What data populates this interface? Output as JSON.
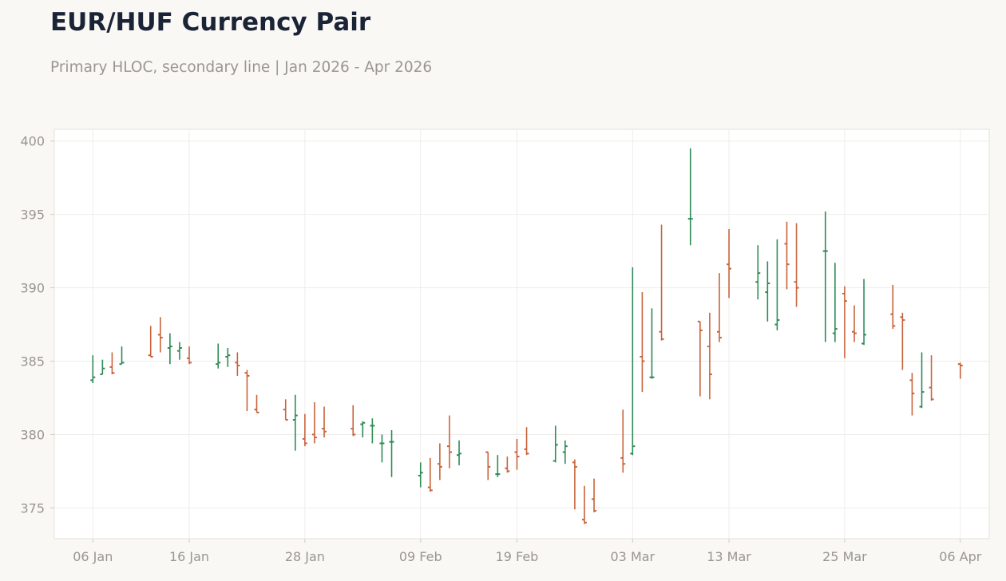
{
  "chart_data": {
    "type": "ohlc",
    "title": "EUR/HUF Currency Pair",
    "subtitle": "Primary HLOC, secondary line | Jan 2026 - Apr 2026",
    "xlabel": "",
    "ylabel": "",
    "ylim": [
      372.9,
      400.8
    ],
    "yticks": [
      375,
      380,
      385,
      390,
      395,
      400
    ],
    "xlim": [
      "2026-01-02",
      "2026-04-09"
    ],
    "xticks": [
      {
        "date": "2026-01-06",
        "label": "06 Jan"
      },
      {
        "date": "2026-01-16",
        "label": "16 Jan"
      },
      {
        "date": "2026-01-28",
        "label": "28 Jan"
      },
      {
        "date": "2026-02-09",
        "label": "09 Feb"
      },
      {
        "date": "2026-02-19",
        "label": "19 Feb"
      },
      {
        "date": "2026-03-03",
        "label": "03 Mar"
      },
      {
        "date": "2026-03-13",
        "label": "13 Mar"
      },
      {
        "date": "2026-03-25",
        "label": "25 Mar"
      },
      {
        "date": "2026-04-06",
        "label": "06 Apr"
      }
    ],
    "grid": true,
    "legend": "none",
    "colors": {
      "up": "#2e8b57",
      "down": "#c8633b"
    },
    "dates": [
      "2026-01-06",
      "2026-01-07",
      "2026-01-08",
      "2026-01-09",
      "2026-01-12",
      "2026-01-13",
      "2026-01-14",
      "2026-01-15",
      "2026-01-16",
      "2026-01-19",
      "2026-01-20",
      "2026-01-21",
      "2026-01-22",
      "2026-01-23",
      "2026-01-26",
      "2026-01-27",
      "2026-01-28",
      "2026-01-29",
      "2026-01-30",
      "2026-02-02",
      "2026-02-03",
      "2026-02-04",
      "2026-02-05",
      "2026-02-06",
      "2026-02-09",
      "2026-02-10",
      "2026-02-11",
      "2026-02-12",
      "2026-02-13",
      "2026-02-16",
      "2026-02-17",
      "2026-02-18",
      "2026-02-19",
      "2026-02-20",
      "2026-02-23",
      "2026-02-24",
      "2026-02-25",
      "2026-02-26",
      "2026-02-27",
      "2026-03-02",
      "2026-03-03",
      "2026-03-04",
      "2026-03-05",
      "2026-03-06",
      "2026-03-09",
      "2026-03-10",
      "2026-03-11",
      "2026-03-12",
      "2026-03-13",
      "2026-03-16",
      "2026-03-17",
      "2026-03-18",
      "2026-03-19",
      "2026-03-20",
      "2026-03-23",
      "2026-03-24",
      "2026-03-25",
      "2026-03-26",
      "2026-03-27",
      "2026-03-30",
      "2026-03-31",
      "2026-04-01",
      "2026-04-02",
      "2026-04-03",
      "2026-04-06"
    ],
    "open": [
      383.7,
      384.1,
      384.6,
      384.8,
      385.4,
      386.8,
      385.9,
      385.7,
      385.2,
      384.8,
      385.3,
      384.9,
      384.2,
      381.7,
      381.7,
      381.0,
      379.7,
      380.0,
      380.4,
      380.4,
      380.7,
      380.6,
      379.4,
      379.5,
      377.2,
      376.4,
      378.0,
      379.2,
      378.6,
      378.8,
      377.3,
      377.7,
      378.8,
      379.0,
      378.2,
      378.8,
      378.1,
      374.2,
      375.6,
      378.4,
      378.7,
      385.3,
      383.9,
      387.0,
      394.7,
      387.7,
      386.0,
      387.0,
      391.6,
      390.4,
      389.7,
      387.5,
      393.0,
      390.4,
      392.5,
      386.9,
      389.6,
      387.0,
      386.2,
      388.2,
      388.0,
      383.7,
      381.9,
      383.2,
      384.8
    ],
    "high": [
      385.4,
      385.1,
      385.6,
      386.0,
      387.4,
      388.0,
      386.9,
      386.3,
      386.0,
      386.2,
      385.9,
      385.6,
      384.4,
      382.7,
      382.4,
      382.7,
      381.4,
      382.2,
      381.9,
      382.0,
      380.9,
      381.1,
      380.0,
      380.3,
      378.1,
      378.4,
      379.4,
      381.3,
      379.6,
      378.8,
      378.6,
      378.5,
      379.7,
      380.5,
      380.6,
      379.6,
      378.3,
      376.5,
      377.0,
      381.7,
      391.4,
      389.7,
      388.6,
      394.3,
      399.5,
      387.7,
      388.3,
      391.0,
      394.0,
      392.9,
      391.8,
      393.3,
      394.5,
      394.4,
      395.2,
      391.7,
      390.1,
      388.8,
      390.6,
      390.2,
      388.3,
      384.2,
      385.6,
      385.4,
      384.9
    ],
    "low": [
      383.5,
      384.1,
      384.1,
      384.8,
      385.3,
      385.6,
      384.8,
      385.1,
      384.8,
      384.5,
      384.6,
      384.0,
      381.6,
      381.5,
      381.0,
      378.9,
      379.2,
      379.4,
      379.8,
      379.9,
      379.8,
      379.4,
      378.1,
      377.1,
      376.4,
      376.1,
      376.9,
      377.7,
      377.9,
      376.9,
      377.1,
      377.4,
      377.6,
      378.6,
      378.1,
      378.0,
      374.9,
      373.9,
      374.7,
      377.4,
      378.6,
      382.9,
      383.8,
      386.4,
      392.9,
      382.6,
      382.4,
      386.3,
      389.3,
      389.2,
      387.7,
      387.1,
      389.9,
      388.7,
      386.3,
      386.3,
      385.2,
      386.3,
      386.1,
      387.2,
      384.4,
      381.3,
      381.8,
      382.3,
      383.8
    ],
    "close": [
      383.9,
      384.5,
      384.2,
      384.9,
      385.3,
      386.6,
      386.0,
      385.9,
      384.9,
      384.9,
      385.4,
      384.7,
      384.0,
      381.5,
      381.0,
      381.3,
      379.4,
      379.8,
      380.2,
      380.0,
      380.8,
      380.6,
      379.4,
      379.5,
      377.4,
      376.2,
      377.8,
      378.8,
      378.7,
      377.8,
      377.3,
      377.5,
      378.5,
      378.7,
      379.3,
      379.2,
      377.8,
      374.0,
      374.8,
      378.0,
      379.2,
      385.0,
      383.9,
      386.5,
      394.7,
      387.1,
      384.1,
      386.6,
      391.3,
      391.0,
      390.3,
      387.8,
      391.6,
      390.0,
      392.5,
      387.2,
      389.1,
      386.9,
      386.8,
      387.4,
      387.8,
      382.8,
      382.9,
      382.4,
      384.7
    ]
  }
}
